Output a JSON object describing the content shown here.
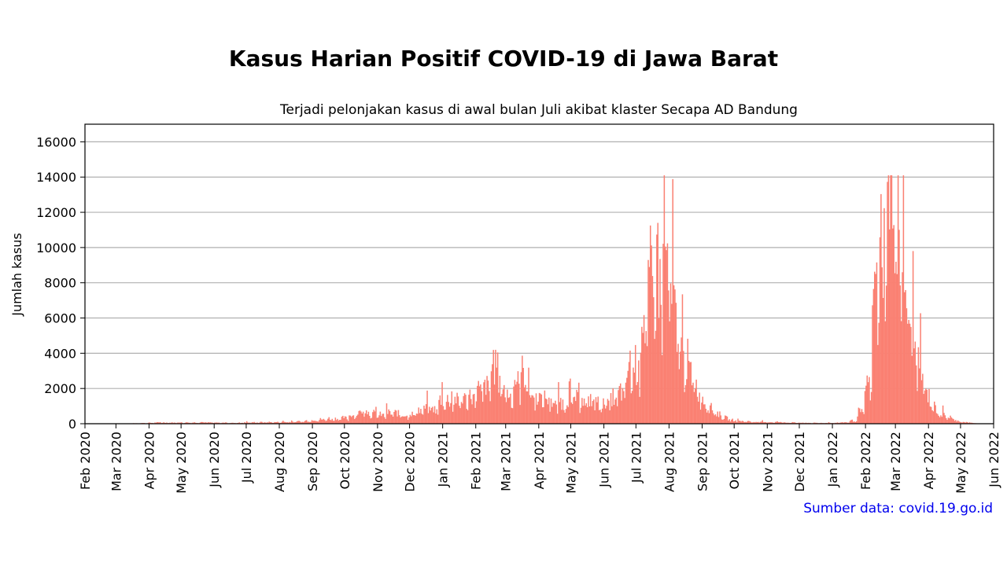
{
  "title": "Kasus Harian Positif COVID-19 di Jawa Barat",
  "source": "Sumber data: covid.19.go.id",
  "chart_data": {
    "type": "bar",
    "title": "Kasus Harian Positif COVID-19 di Jawa Barat",
    "subtitle": "Terjadi pelonjakan kasus di awal bulan Juli akibat klaster Secapa AD Bandung",
    "xlabel": "",
    "ylabel": "Jumlah kasus",
    "ylim": [
      0,
      17000
    ],
    "yticks": [
      0,
      2000,
      4000,
      6000,
      8000,
      10000,
      12000,
      14000,
      16000
    ],
    "xlim": [
      "2020-02-01",
      "2022-06-01"
    ],
    "xticks": [
      "Feb 2020",
      "Mar 2020",
      "Apr 2020",
      "May 2020",
      "Jun 2020",
      "Jul 2020",
      "Aug 2020",
      "Sep 2020",
      "Oct 2020",
      "Nov 2020",
      "Dec 2020",
      "Jan 2021",
      "Feb 2021",
      "Mar 2021",
      "Apr 2021",
      "May 2021",
      "Jun 2021",
      "Jul 2021",
      "Aug 2021",
      "Sep 2021",
      "Oct 2021",
      "Nov 2021",
      "Dec 2021",
      "Jan 2022",
      "Feb 2022",
      "Mar 2022",
      "Apr 2022",
      "May 2022",
      "Jun 2022"
    ],
    "grid": "horizontal",
    "color": "#fa8072",
    "note": "Daily bars grouped as approximate weekly daily-case levels (values per day for each week starting at the given date).",
    "weeks": [
      {
        "start": "2020-03-02",
        "value": 8
      },
      {
        "start": "2020-03-09",
        "value": 15
      },
      {
        "start": "2020-03-16",
        "value": 25
      },
      {
        "start": "2020-03-23",
        "value": 35
      },
      {
        "start": "2020-03-30",
        "value": 45
      },
      {
        "start": "2020-04-06",
        "value": 60
      },
      {
        "start": "2020-04-13",
        "value": 60
      },
      {
        "start": "2020-04-20",
        "value": 55
      },
      {
        "start": "2020-04-27",
        "value": 50
      },
      {
        "start": "2020-05-04",
        "value": 55
      },
      {
        "start": "2020-05-11",
        "value": 60
      },
      {
        "start": "2020-05-18",
        "value": 80
      },
      {
        "start": "2020-05-25",
        "value": 60
      },
      {
        "start": "2020-06-01",
        "value": 50
      },
      {
        "start": "2020-06-08",
        "value": 50
      },
      {
        "start": "2020-06-15",
        "value": 40
      },
      {
        "start": "2020-06-22",
        "value": 45
      },
      {
        "start": "2020-06-29",
        "value": 60
      },
      {
        "start": "2020-07-06",
        "value": 70
      },
      {
        "start": "2020-07-13",
        "value": 75
      },
      {
        "start": "2020-07-20",
        "value": 80
      },
      {
        "start": "2020-07-27",
        "value": 80
      },
      {
        "start": "2020-08-03",
        "value": 90
      },
      {
        "start": "2020-08-10",
        "value": 100
      },
      {
        "start": "2020-08-17",
        "value": 110
      },
      {
        "start": "2020-08-24",
        "value": 150
      },
      {
        "start": "2020-08-31",
        "value": 200
      },
      {
        "start": "2020-09-07",
        "value": 220
      },
      {
        "start": "2020-09-14",
        "value": 260
      },
      {
        "start": "2020-09-21",
        "value": 260
      },
      {
        "start": "2020-09-28",
        "value": 300
      },
      {
        "start": "2020-10-05",
        "value": 450
      },
      {
        "start": "2020-10-12",
        "value": 550
      },
      {
        "start": "2020-10-19",
        "value": 600
      },
      {
        "start": "2020-10-26",
        "value": 500
      },
      {
        "start": "2020-11-02",
        "value": 450
      },
      {
        "start": "2020-11-09",
        "value": 550
      },
      {
        "start": "2020-11-16",
        "value": 550
      },
      {
        "start": "2020-11-23",
        "value": 450
      },
      {
        "start": "2020-11-30",
        "value": 500
      },
      {
        "start": "2020-12-07",
        "value": 700
      },
      {
        "start": "2020-12-14",
        "value": 800
      },
      {
        "start": "2020-12-21",
        "value": 750
      },
      {
        "start": "2020-12-28",
        "value": 1200
      },
      {
        "start": "2021-01-04",
        "value": 1200
      },
      {
        "start": "2021-01-11",
        "value": 1200
      },
      {
        "start": "2021-01-18",
        "value": 1300
      },
      {
        "start": "2021-01-25",
        "value": 1500
      },
      {
        "start": "2021-02-01",
        "value": 1700
      },
      {
        "start": "2021-02-08",
        "value": 1900
      },
      {
        "start": "2021-02-15",
        "value": 3000
      },
      {
        "start": "2021-02-22",
        "value": 1800
      },
      {
        "start": "2021-03-01",
        "value": 1500
      },
      {
        "start": "2021-03-08",
        "value": 2200
      },
      {
        "start": "2021-03-15",
        "value": 2600
      },
      {
        "start": "2021-03-22",
        "value": 1500
      },
      {
        "start": "2021-03-29",
        "value": 1400
      },
      {
        "start": "2021-04-05",
        "value": 1300
      },
      {
        "start": "2021-04-12",
        "value": 1000
      },
      {
        "start": "2021-04-19",
        "value": 1100
      },
      {
        "start": "2021-04-26",
        "value": 1200
      },
      {
        "start": "2021-05-03",
        "value": 1300
      },
      {
        "start": "2021-05-10",
        "value": 1100
      },
      {
        "start": "2021-05-17",
        "value": 1200
      },
      {
        "start": "2021-05-24",
        "value": 1000
      },
      {
        "start": "2021-05-31",
        "value": 1100
      },
      {
        "start": "2021-06-07",
        "value": 1300
      },
      {
        "start": "2021-06-14",
        "value": 1600
      },
      {
        "start": "2021-06-21",
        "value": 2500
      },
      {
        "start": "2021-06-28",
        "value": 3000
      },
      {
        "start": "2021-07-05",
        "value": 5500
      },
      {
        "start": "2021-07-12",
        "value": 7000
      },
      {
        "start": "2021-07-19",
        "value": 7500
      },
      {
        "start": "2021-07-26",
        "value": 8500
      },
      {
        "start": "2021-08-02",
        "value": 6000
      },
      {
        "start": "2021-08-09",
        "value": 3800
      },
      {
        "start": "2021-08-16",
        "value": 3000
      },
      {
        "start": "2021-08-23",
        "value": 2000
      },
      {
        "start": "2021-08-30",
        "value": 1200
      },
      {
        "start": "2021-09-06",
        "value": 800
      },
      {
        "start": "2021-09-13",
        "value": 500
      },
      {
        "start": "2021-09-20",
        "value": 300
      },
      {
        "start": "2021-09-27",
        "value": 180
      },
      {
        "start": "2021-10-04",
        "value": 140
      },
      {
        "start": "2021-10-11",
        "value": 110
      },
      {
        "start": "2021-10-18",
        "value": 90
      },
      {
        "start": "2021-10-25",
        "value": 80
      },
      {
        "start": "2021-11-01",
        "value": 80
      },
      {
        "start": "2021-11-08",
        "value": 90
      },
      {
        "start": "2021-11-15",
        "value": 70
      },
      {
        "start": "2021-11-22",
        "value": 60
      },
      {
        "start": "2021-11-29",
        "value": 50
      },
      {
        "start": "2021-12-06",
        "value": 45
      },
      {
        "start": "2021-12-13",
        "value": 40
      },
      {
        "start": "2021-12-20",
        "value": 40
      },
      {
        "start": "2021-12-27",
        "value": 45
      },
      {
        "start": "2022-01-03",
        "value": 50
      },
      {
        "start": "2022-01-10",
        "value": 70
      },
      {
        "start": "2022-01-17",
        "value": 150
      },
      {
        "start": "2022-01-24",
        "value": 600
      },
      {
        "start": "2022-01-31",
        "value": 2000
      },
      {
        "start": "2022-02-07",
        "value": 6500
      },
      {
        "start": "2022-02-14",
        "value": 9500
      },
      {
        "start": "2022-02-21",
        "value": 12500
      },
      {
        "start": "2022-02-28",
        "value": 10500
      },
      {
        "start": "2022-03-07",
        "value": 7000
      },
      {
        "start": "2022-03-14",
        "value": 4500
      },
      {
        "start": "2022-03-21",
        "value": 2800
      },
      {
        "start": "2022-03-28",
        "value": 1500
      },
      {
        "start": "2022-04-04",
        "value": 800
      },
      {
        "start": "2022-04-11",
        "value": 450
      },
      {
        "start": "2022-04-18",
        "value": 300
      },
      {
        "start": "2022-04-25",
        "value": 150
      },
      {
        "start": "2022-05-02",
        "value": 80
      },
      {
        "start": "2022-05-09",
        "value": 40
      }
    ]
  }
}
